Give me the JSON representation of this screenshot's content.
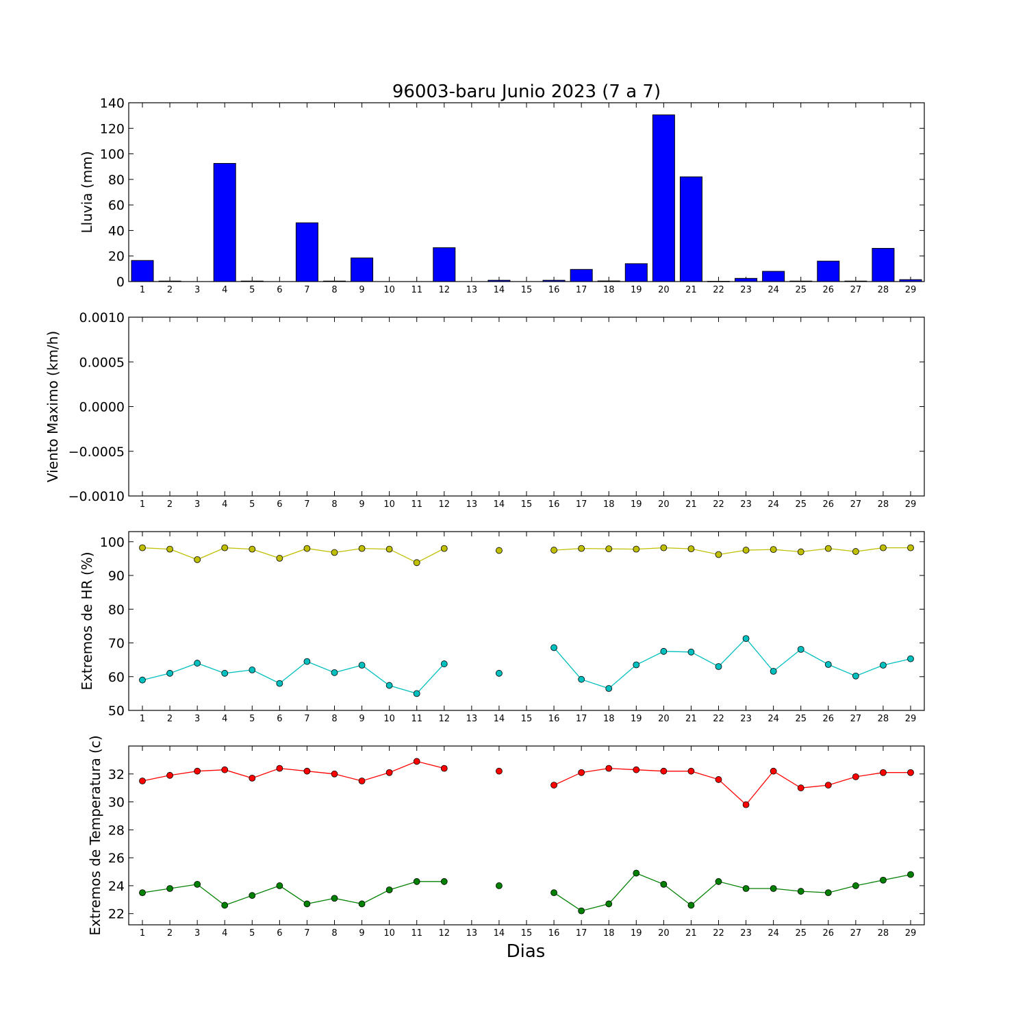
{
  "chart_data": {
    "title": "96003-baru Junio 2023  (7 a 7)",
    "xlabel": "Dias",
    "x_ticks": [
      "1",
      "2",
      "3",
      "4",
      "5",
      "6",
      "7",
      "8",
      "9",
      "10",
      "11",
      "12",
      "13",
      "14",
      "15",
      "16",
      "17",
      "18",
      "19",
      "20",
      "21",
      "22",
      "23",
      "24",
      "25",
      "26",
      "27",
      "28",
      "29"
    ],
    "panels": [
      {
        "type": "bar",
        "ylabel": "Lluvia (mm)",
        "ylim": [
          0,
          140
        ],
        "yticks": [
          "0",
          "20",
          "40",
          "60",
          "80",
          "100",
          "120",
          "140"
        ],
        "series": [
          {
            "color": "#0000ff",
            "values": [
              16.5,
              0.4,
              0,
              92.5,
              0.4,
              0,
              46,
              0.4,
              18.5,
              0,
              0,
              26.5,
              0,
              1,
              0,
              1,
              9.5,
              0.5,
              14,
              130.5,
              82,
              0.2,
              2.5,
              8,
              0.4,
              16,
              0.4,
              26,
              1.5
            ]
          }
        ]
      },
      {
        "type": "line",
        "ylabel": "Viento Maximo (km/h)",
        "ylim": [
          -0.001,
          0.001
        ],
        "yticks": [
          "−0.0010",
          "−0.0005",
          "0.0000",
          "0.0005",
          "0.0010"
        ],
        "series": []
      },
      {
        "type": "line",
        "ylabel": "Extremos de HR (%)",
        "ylim": [
          50,
          103
        ],
        "yticks": [
          "50",
          "60",
          "70",
          "80",
          "90",
          "100"
        ],
        "series": [
          {
            "color": "#bfbf00",
            "values": [
              98.2,
              97.8,
              94.7,
              98.2,
              97.8,
              95.1,
              98,
              96.8,
              98,
              97.8,
              93.8,
              98,
              null,
              97.4,
              null,
              97.5,
              98,
              97.9,
              97.8,
              98.2,
              97.9,
              96.2,
              97.5,
              97.7,
              97,
              98,
              97.1,
              98.2,
              98.2
            ]
          },
          {
            "color": "#00bfbf",
            "values": [
              59,
              61,
              64,
              61,
              62,
              58,
              64.5,
              61.2,
              63.4,
              57.4,
              55,
              63.8,
              null,
              61,
              null,
              68.6,
              59.2,
              56.5,
              63.5,
              67.5,
              67.3,
              63,
              71.3,
              61.6,
              68.1,
              63.6,
              60.2,
              63.4,
              65.3
            ]
          }
        ]
      },
      {
        "type": "line",
        "ylabel": "Extremos de Temperatura (c)",
        "ylim": [
          21.2,
          34
        ],
        "yticks": [
          "22",
          "24",
          "26",
          "28",
          "30",
          "32"
        ],
        "series": [
          {
            "color": "#ff0000",
            "values": [
              31.5,
              31.9,
              32.2,
              32.3,
              31.7,
              32.4,
              32.2,
              32,
              31.5,
              32.1,
              32.9,
              32.4,
              null,
              32.2,
              null,
              31.2,
              32.1,
              32.4,
              32.3,
              32.2,
              32.2,
              31.6,
              29.8,
              32.2,
              31,
              31.2,
              31.8,
              32.1,
              32.1
            ]
          },
          {
            "color": "#008000",
            "values": [
              23.5,
              23.8,
              24.1,
              22.6,
              23.3,
              24,
              22.7,
              23.1,
              22.7,
              23.7,
              24.3,
              24.3,
              null,
              24,
              null,
              23.5,
              22.2,
              22.7,
              24.9,
              24.1,
              22.6,
              24.3,
              23.8,
              23.8,
              23.6,
              23.5,
              24,
              24.4,
              24.8
            ]
          }
        ]
      }
    ]
  }
}
